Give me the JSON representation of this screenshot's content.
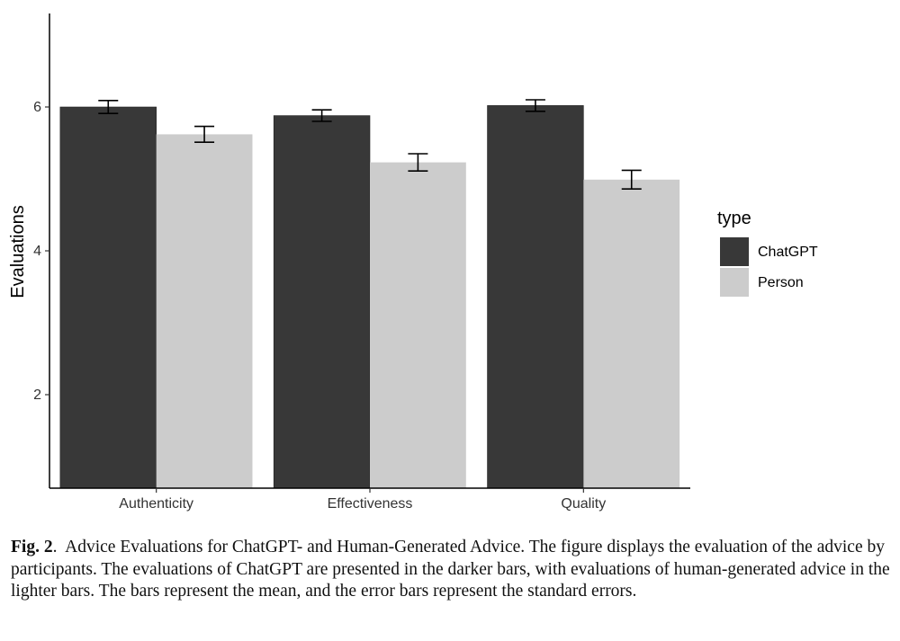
{
  "chart_data": {
    "type": "bar",
    "categories": [
      "Authenticity",
      "Effectiveness",
      "Quality"
    ],
    "series": [
      {
        "name": "ChatGPT",
        "values": [
          6.0,
          5.88,
          6.02
        ],
        "se": [
          0.09,
          0.08,
          0.08
        ],
        "color": "#383838"
      },
      {
        "name": "Person",
        "values": [
          5.62,
          5.23,
          4.99
        ],
        "se": [
          0.11,
          0.12,
          0.13
        ],
        "color": "#cccccc"
      }
    ],
    "ylabel": "Evaluations",
    "xlabel": "",
    "y_ticks": [
      2,
      4,
      6
    ],
    "ylim": [
      0.7,
      7.3
    ],
    "grid": false,
    "legend": {
      "title": "type",
      "position": "right"
    }
  },
  "caption": {
    "label": "Fig. 2",
    "text": "Advice Evaluations for ChatGPT- and Human-Generated Advice. The figure displays the evaluation of the advice by participants. The evaluations of ChatGPT are presented in the darker bars, with evaluations of human-generated advice in the lighter bars. The bars represent the mean, and the error bars represent the standard errors."
  }
}
